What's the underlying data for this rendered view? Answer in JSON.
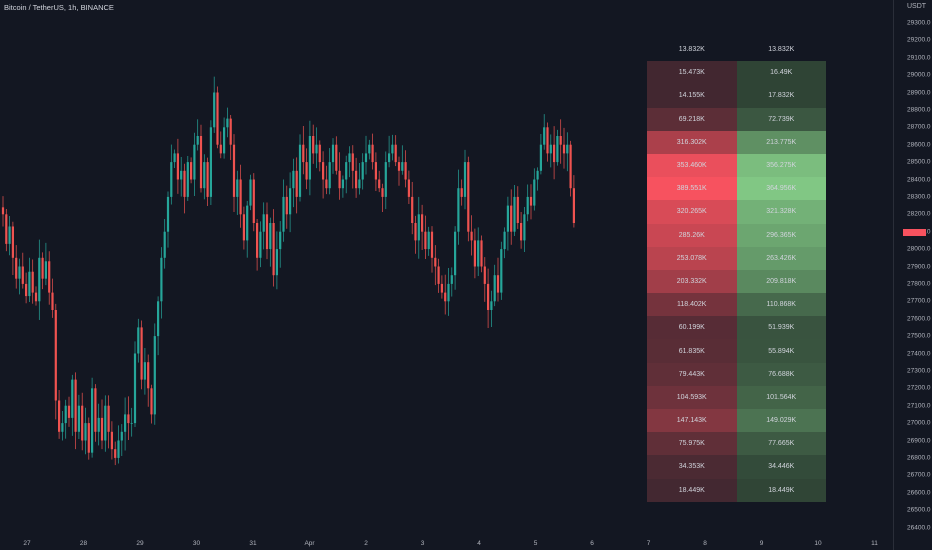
{
  "title": "Bitcoin / TetherUS, 1h, BINANCE",
  "currency": "USDT",
  "price_ticks": [
    "29300.0",
    "29200.0",
    "29100.0",
    "29000.0",
    "28900.0",
    "28800.0",
    "28700.0",
    "28600.0",
    "28500.0",
    "28400.0",
    "28300.0",
    "28200.0",
    "28100.0",
    "28000.0",
    "27900.0",
    "27800.0",
    "27700.0",
    "27600.0",
    "27500.0",
    "27400.0",
    "27300.0",
    "27200.0",
    "27100.0",
    "27000.0",
    "26900.0",
    "26800.0",
    "26700.0",
    "26600.0",
    "26500.0",
    "26400.0"
  ],
  "date_ticks": [
    "27",
    "28",
    "29",
    "30",
    "31",
    "Apr",
    "2",
    "3",
    "4",
    "5",
    "6",
    "7",
    "8",
    "9",
    "10",
    "11"
  ],
  "current_price_color": "#f7525f",
  "volume_profile": {
    "header": {
      "sell": "13.832K",
      "buy": "13.832K"
    },
    "rows": [
      {
        "sell": "15.473K",
        "buy": "16.49K",
        "intensity": 0.05
      },
      {
        "sell": "14.155K",
        "buy": "17.832K",
        "intensity": 0.05
      },
      {
        "sell": "69.218K",
        "buy": "72.739K",
        "intensity": 0.19
      },
      {
        "sell": "316.302K",
        "buy": "213.775K",
        "intensity": 0.6
      },
      {
        "sell": "353.460K",
        "buy": "356.275K",
        "intensity": 0.93
      },
      {
        "sell": "389.551K",
        "buy": "364.956K",
        "intensity": 1.0
      },
      {
        "sell": "320.265K",
        "buy": "321.328K",
        "intensity": 0.84
      },
      {
        "sell": "285.26K",
        "buy": "296.365K",
        "intensity": 0.76
      },
      {
        "sell": "253.078K",
        "buy": "263.426K",
        "intensity": 0.68
      },
      {
        "sell": "203.332K",
        "buy": "209.818K",
        "intensity": 0.55
      },
      {
        "sell": "118.402K",
        "buy": "110.868K",
        "intensity": 0.32
      },
      {
        "sell": "60.199K",
        "buy": "51.939K",
        "intensity": 0.16
      },
      {
        "sell": "61.835K",
        "buy": "55.894K",
        "intensity": 0.17
      },
      {
        "sell": "79.443K",
        "buy": "76.688K",
        "intensity": 0.21
      },
      {
        "sell": "104.593K",
        "buy": "101.564K",
        "intensity": 0.28
      },
      {
        "sell": "147.143K",
        "buy": "149.029K",
        "intensity": 0.39
      },
      {
        "sell": "75.975K",
        "buy": "77.665K",
        "intensity": 0.21
      },
      {
        "sell": "34.353K",
        "buy": "34.446K",
        "intensity": 0.1
      },
      {
        "sell": "18.449K",
        "buy": "18.449K",
        "intensity": 0.06
      }
    ]
  },
  "colors": {
    "up": "#26a69a",
    "down": "#ef5350",
    "sell": "#f7525f",
    "buy": "#81c784",
    "background": "#131722"
  },
  "chart_data": {
    "type": "candlestick",
    "ylim": [
      26400,
      29350
    ],
    "close_prices": [
      28150,
      27980,
      28080,
      27900,
      27780,
      27850,
      27750,
      27680,
      27820,
      27700,
      27650,
      27900,
      27780,
      27880,
      27700,
      27600,
      27080,
      26900,
      26950,
      27050,
      26980,
      27200,
      26900,
      27050,
      26850,
      26950,
      26780,
      27150,
      26900,
      26980,
      26850,
      27050,
      26900,
      26800,
      26750,
      26850,
      26900,
      27000,
      26950,
      26950,
      27350,
      27500,
      27200,
      27300,
      27150,
      27000,
      27450,
      27650,
      27900,
      28050,
      28250,
      28450,
      28500,
      28350,
      28400,
      28250,
      28450,
      28350,
      28550,
      28600,
      28300,
      28450,
      28250,
      28650,
      28850,
      28550,
      28500,
      28650,
      28700,
      28550,
      28250,
      28350,
      28150,
      28000,
      28200,
      28350,
      28100,
      27900,
      28050,
      28150,
      27950,
      28100,
      27800,
      27950,
      28050,
      28250,
      28150,
      28300,
      28400,
      28250,
      28550,
      28450,
      28350,
      28600,
      28500,
      28550,
      28450,
      28350,
      28300,
      28450,
      28550,
      28400,
      28300,
      28350,
      28450,
      28500,
      28400,
      28300,
      28350,
      28450,
      28500,
      28550,
      28450,
      28350,
      28300,
      28250,
      28450,
      28500,
      28550,
      28450,
      28400,
      28450,
      28350,
      28250,
      28100,
      28000,
      28150,
      28050,
      27950,
      28050,
      27900,
      27850,
      27750,
      27700,
      27650,
      27750,
      27800,
      28050,
      28300,
      28250,
      28450,
      28050,
      28000,
      27850,
      28000,
      27850,
      27750,
      27600,
      27650,
      27800,
      27700,
      27950,
      28050,
      28200,
      28050,
      28250,
      28100,
      28000,
      28150,
      28250,
      28200,
      28350,
      28400,
      28550,
      28650,
      28500,
      28550,
      28450,
      28600,
      28550,
      28500,
      28550,
      28300,
      28100
    ]
  }
}
